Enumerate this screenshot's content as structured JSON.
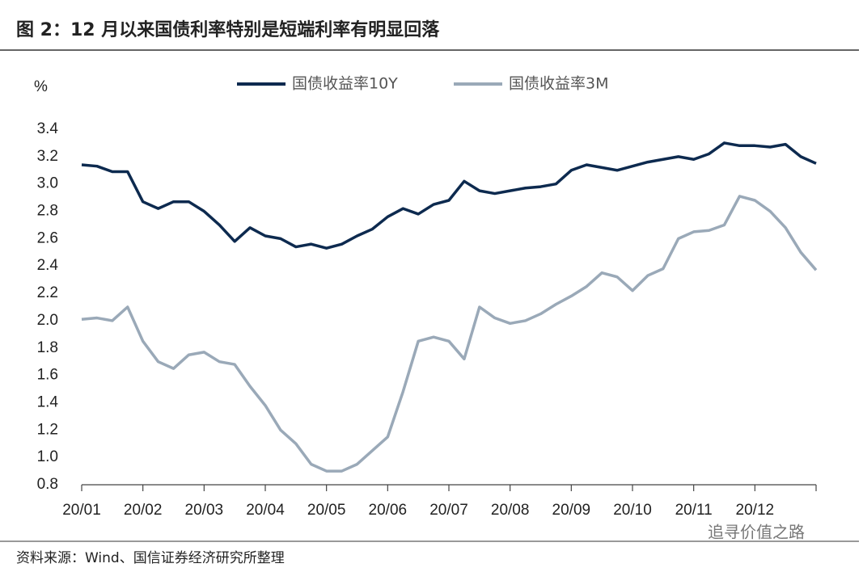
{
  "chart_data": {
    "type": "line",
    "title": "图 2：12 月以来国债利率特别是短端利率有明显回落",
    "y_label": "%",
    "source": "资料来源：Wind、国信证券经济研究所整理",
    "watermark": "追寻价值之路",
    "categories": [
      "20/01",
      null,
      null,
      null,
      "20/02",
      null,
      null,
      null,
      "20/03",
      null,
      null,
      null,
      "20/04",
      null,
      null,
      null,
      "20/05",
      null,
      null,
      null,
      "20/06",
      null,
      null,
      null,
      "20/07",
      null,
      null,
      null,
      "20/08",
      null,
      null,
      null,
      "20/09",
      null,
      null,
      null,
      "20/10",
      null,
      null,
      null,
      "20/11",
      null,
      null,
      null,
      "20/12",
      null,
      null,
      null,
      null
    ],
    "series": [
      {
        "name": "国债收益率10Y",
        "color": "#0d2a4f",
        "values": [
          3.14,
          3.13,
          3.09,
          3.09,
          2.87,
          2.82,
          2.87,
          2.87,
          2.8,
          2.7,
          2.58,
          2.68,
          2.62,
          2.6,
          2.54,
          2.56,
          2.53,
          2.56,
          2.62,
          2.67,
          2.76,
          2.82,
          2.78,
          2.85,
          2.88,
          3.02,
          2.95,
          2.93,
          2.95,
          2.97,
          2.98,
          3.0,
          3.1,
          3.14,
          3.12,
          3.1,
          3.13,
          3.16,
          3.18,
          3.2,
          3.18,
          3.22,
          3.3,
          3.28,
          3.28,
          3.27,
          3.29,
          3.2,
          3.15
        ]
      },
      {
        "name": "国债收益率3M",
        "color": "#9aa9b8",
        "values": [
          2.01,
          2.02,
          2.0,
          2.1,
          1.85,
          1.7,
          1.65,
          1.75,
          1.77,
          1.7,
          1.68,
          1.52,
          1.38,
          1.2,
          1.1,
          0.95,
          0.9,
          0.9,
          0.95,
          1.05,
          1.15,
          1.48,
          1.85,
          1.88,
          1.85,
          1.72,
          2.1,
          2.02,
          1.98,
          2.0,
          2.05,
          2.12,
          2.18,
          2.25,
          2.35,
          2.32,
          2.22,
          2.33,
          2.38,
          2.6,
          2.65,
          2.66,
          2.7,
          2.91,
          2.88,
          2.8,
          2.68,
          2.5,
          2.37
        ]
      }
    ],
    "ylim": [
      0.8,
      3.4
    ],
    "yticks": [
      0.8,
      {
        "value": 1.0,
        "label": "1.0"
      },
      1.2,
      1.4,
      1.6,
      1.8,
      {
        "value": 2.0,
        "label": "2.0"
      },
      2.2,
      2.4,
      2.6,
      2.8,
      {
        "value": 3.0,
        "label": "3.0"
      },
      3.2,
      3.4
    ],
    "legend": "top"
  }
}
